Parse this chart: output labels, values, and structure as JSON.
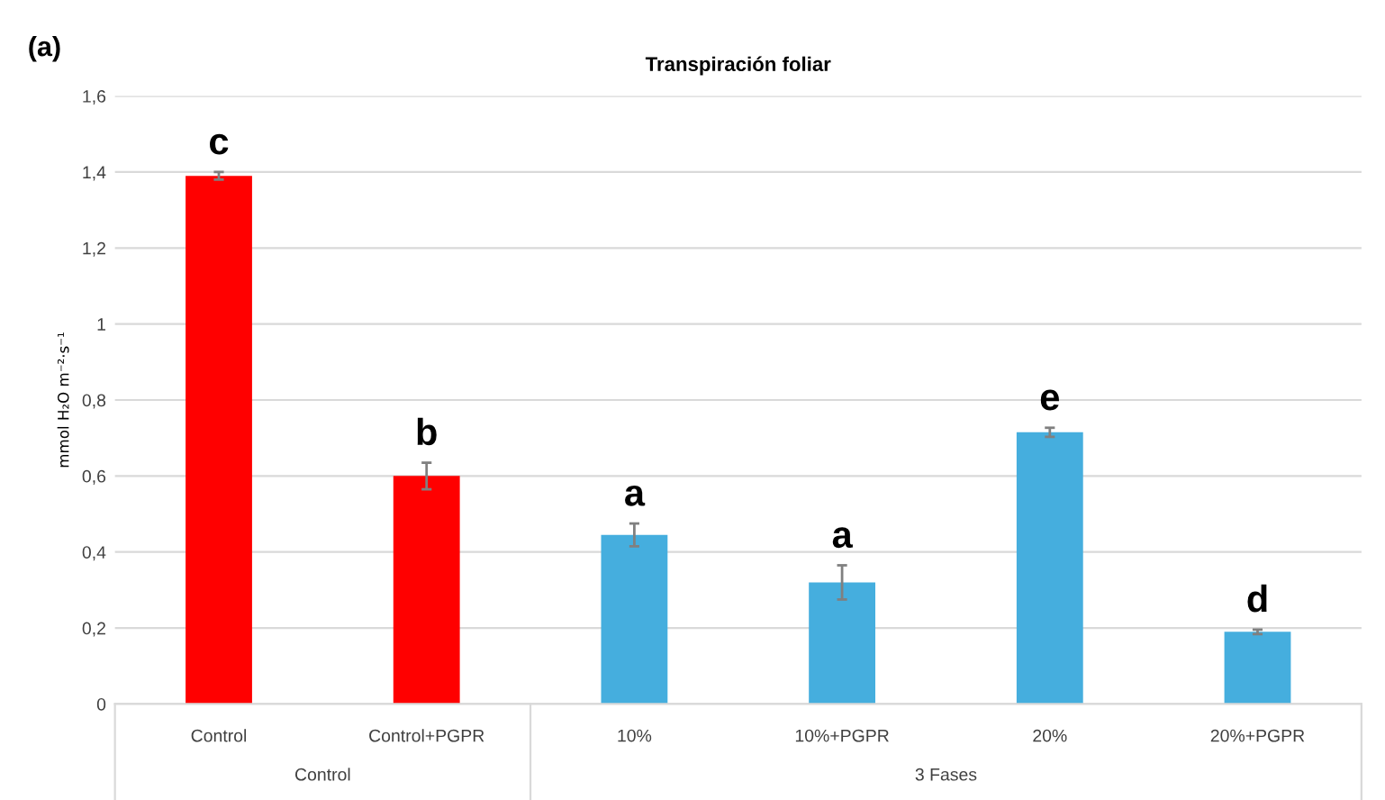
{
  "chart_data": {
    "type": "bar",
    "title": "Transpiración foliar",
    "ylabel": "mmol H₂O m⁻²·s⁻¹",
    "categories": [
      "Control",
      "Control+PGPR",
      "10%",
      "10%+PGPR",
      "20%",
      "20%+PGPR"
    ],
    "values": [
      1.39,
      0.6,
      0.445,
      0.32,
      0.715,
      0.19
    ],
    "errors": [
      0.01,
      0.035,
      0.03,
      0.045,
      0.012,
      0.006
    ],
    "colors": [
      "#ff0000",
      "#ff0000",
      "#45aede",
      "#45aede",
      "#45aede",
      "#45aede"
    ],
    "ylim": [
      0,
      1.6
    ],
    "yticks": [
      0,
      {
        "value": 0.2,
        "label": "0,2"
      },
      {
        "value": 0.4,
        "label": "0,4"
      },
      {
        "value": 0.6,
        "label": "0,6"
      },
      {
        "value": 0.8,
        "label": "0,8"
      },
      1,
      {
        "value": 1.2,
        "label": "1,2"
      },
      {
        "value": 1.4,
        "label": "1,4"
      },
      {
        "value": 1.6,
        "label": "1,6"
      }
    ],
    "grid": "y",
    "annotations": [
      "(a)",
      {
        "text": "c",
        "x": "Control",
        "y": 1.4
      },
      {
        "text": "b",
        "x": "Control+PGPR",
        "y": 0.635
      },
      {
        "text": "a",
        "x": "10%",
        "y": 0.475
      },
      {
        "text": "a",
        "x": "10%+PGPR",
        "y": 0.365
      },
      {
        "text": "e",
        "x": "20%",
        "y": 0.727
      },
      {
        "text": "d",
        "x": "20%+PGPR",
        "y": 0.196
      },
      "Control",
      "3 Fases"
    ]
  }
}
